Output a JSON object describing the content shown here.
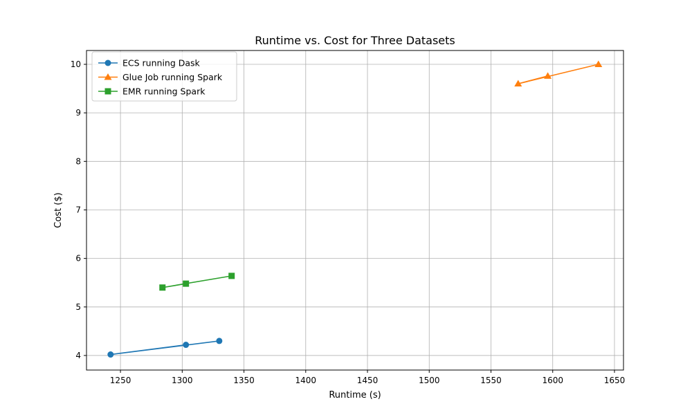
{
  "chart_data": {
    "type": "line",
    "title": "Runtime vs. Cost for Three Datasets",
    "xlabel": "Runtime (s)",
    "ylabel": "Cost ($)",
    "xlim": [
      1222.5,
      1657.3
    ],
    "ylim": [
      3.7,
      10.285
    ],
    "xticks": [
      1250,
      1300,
      1350,
      1400,
      1450,
      1500,
      1550,
      1600,
      1650
    ],
    "yticks": [
      4,
      5,
      6,
      7,
      8,
      9,
      10
    ],
    "grid": true,
    "legend_position": "upper-left",
    "series": [
      {
        "name": "ECS running Dask",
        "color": "#1f77b4",
        "marker": "circle",
        "x": [
          1303,
          1242,
          1330
        ],
        "y": [
          4.22,
          4.02,
          4.3
        ]
      },
      {
        "name": "Glue Job running Spark",
        "color": "#ff7f0e",
        "marker": "triangle",
        "x": [
          1596,
          1572,
          1637
        ],
        "y": [
          9.76,
          9.6,
          10.0
        ]
      },
      {
        "name": "EMR running Spark",
        "color": "#2ca02c",
        "marker": "square",
        "x": [
          1303,
          1284,
          1340
        ],
        "y": [
          5.48,
          5.4,
          5.64
        ]
      }
    ]
  }
}
